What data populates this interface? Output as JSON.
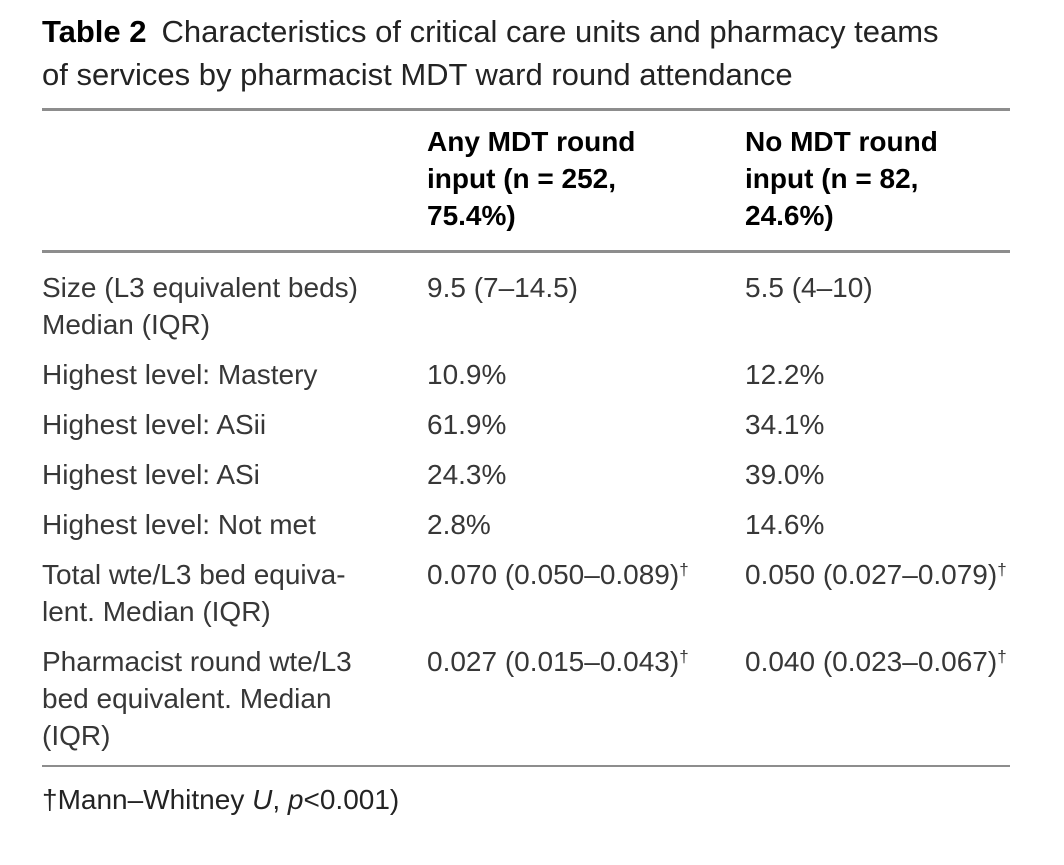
{
  "table": {
    "label": "Table 2",
    "title": "Characteristics of critical care units and pharmacy teams\nof services by pharmacist MDT ward round attendance",
    "columns": {
      "col2": "Any MDT round\ninput (n = 252,\n75.4%)",
      "col3": "No MDT round\ninput (n = 82,\n24.6%)"
    },
    "rows": [
      {
        "label": "Size (L3 equivalent beds)\nMedian (IQR)",
        "col2": "9.5 (7–14.5)",
        "col3": "5.5 (4–10)"
      },
      {
        "label": "Highest level: Mastery",
        "col2": "10.9%",
        "col3": "12.2%"
      },
      {
        "label": "Highest level: ASii",
        "col2": "61.9%",
        "col3": "34.1%"
      },
      {
        "label": "Highest level: ASi",
        "col2": "24.3%",
        "col3": "39.0%"
      },
      {
        "label": "Highest level: Not met",
        "col2": "2.8%",
        "col3": "14.6%"
      },
      {
        "label": "Total wte/L3 bed equiva-\nlent. Median (IQR)",
        "col2": "0.070 (0.050–0.089)",
        "col2_sup": "†",
        "col3": "0.050 (0.027–0.079)",
        "col3_sup": "†"
      },
      {
        "label": "Pharmacist round wte/L3\nbed equivalent. Median\n(IQR)",
        "col2": "0.027 (0.015–0.043)",
        "col2_sup": "†",
        "col3": "0.040 (0.023–0.067)",
        "col3_sup": "†"
      }
    ],
    "footnote": {
      "pre": "†Mann–Whitney ",
      "stat": "U",
      "sep": ", ",
      "pvar": "p",
      "value": "<0.001)"
    }
  }
}
